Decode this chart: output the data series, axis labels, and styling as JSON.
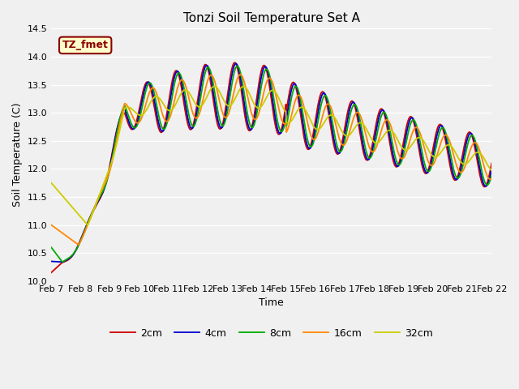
{
  "title": "Tonzi Soil Temperature Set A",
  "xlabel": "Time",
  "ylabel": "Soil Temperature (C)",
  "ylim": [
    10.0,
    14.5
  ],
  "annotation": "TZ_fmet",
  "annotation_bg": "#ffffcc",
  "annotation_border": "#8B0000",
  "annotation_text_color": "#8B0000",
  "bg_color": "#f0f0f0",
  "legend_labels": [
    "2cm",
    "4cm",
    "8cm",
    "16cm",
    "32cm"
  ],
  "line_colors": [
    "#cc0000",
    "#0000cc",
    "#00aa00",
    "#ff8800",
    "#cccc00"
  ],
  "x_tick_labels": [
    "Feb 7",
    "Feb 8",
    "Feb 9",
    "Feb 10",
    "Feb 11",
    "Feb 12",
    "Feb 13",
    "Feb 14",
    "Feb 15",
    "Feb 16",
    "Feb 17",
    "Feb 18",
    "Feb 19",
    "Feb 20",
    "Feb 21",
    "Feb 22"
  ],
  "num_points": 960
}
